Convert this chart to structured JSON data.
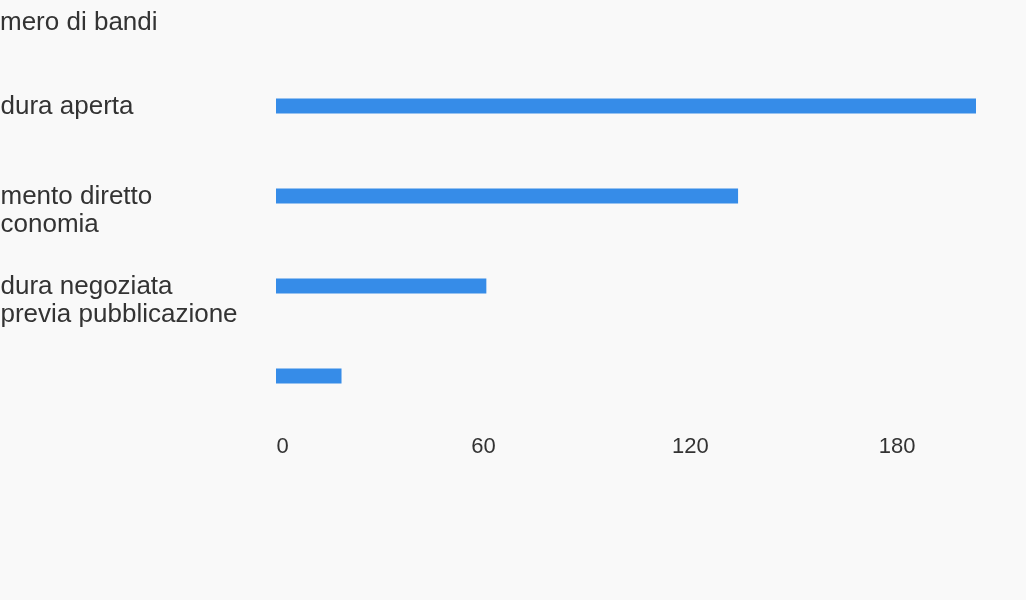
{
  "chart_data": {
    "type": "bar",
    "orientation": "horizontal",
    "title": "mero di bandi",
    "categories": [
      "dura aperta",
      "mento diretto\nconomia",
      "dura negoziata\n previa pubblicazione",
      null
    ],
    "values": [
      203,
      134,
      61,
      19
    ],
    "color": "#368ce8",
    "xlim": [
      0,
      203
    ],
    "xticks": [
      0,
      60,
      120,
      180
    ],
    "grid": false
  }
}
